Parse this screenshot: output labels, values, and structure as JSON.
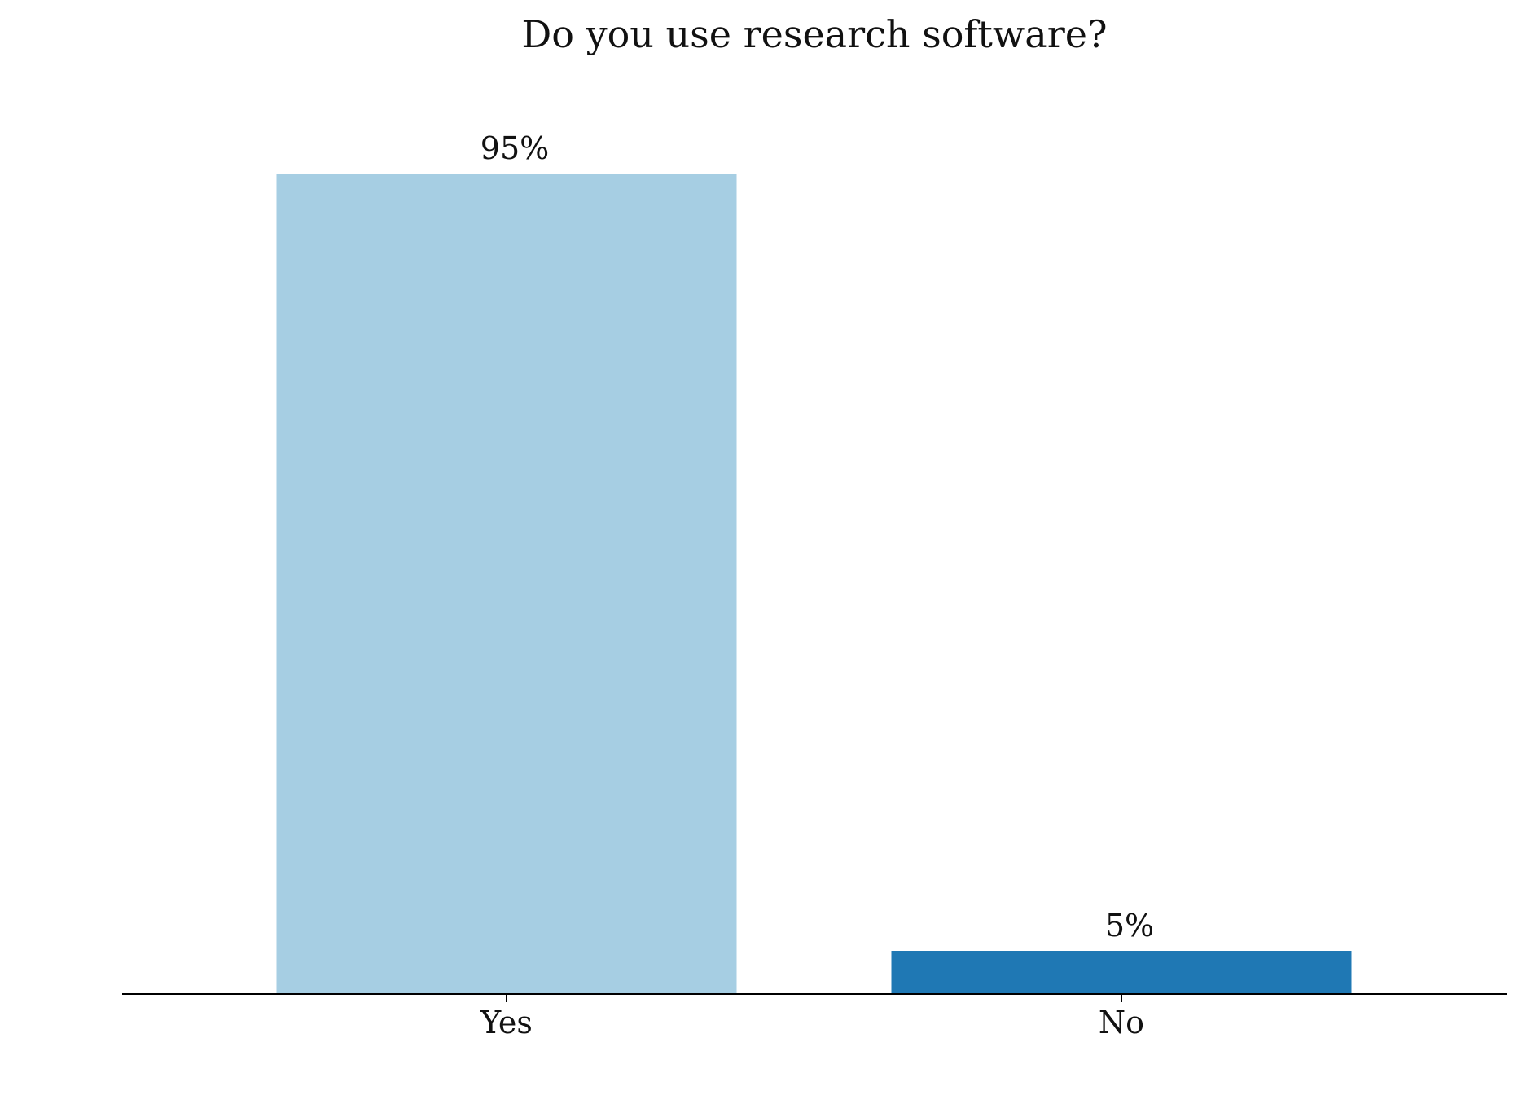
{
  "chart_data": {
    "type": "bar",
    "title": "Do you use research software?",
    "categories": [
      "Yes",
      "No"
    ],
    "values": [
      95,
      5
    ],
    "value_labels": [
      "95%",
      "5%"
    ],
    "colors": [
      "#a6cee3",
      "#1f78b4"
    ],
    "xlabel": "",
    "ylabel": "",
    "ylim": [
      0,
      100
    ],
    "grid": false,
    "legend": "none"
  }
}
